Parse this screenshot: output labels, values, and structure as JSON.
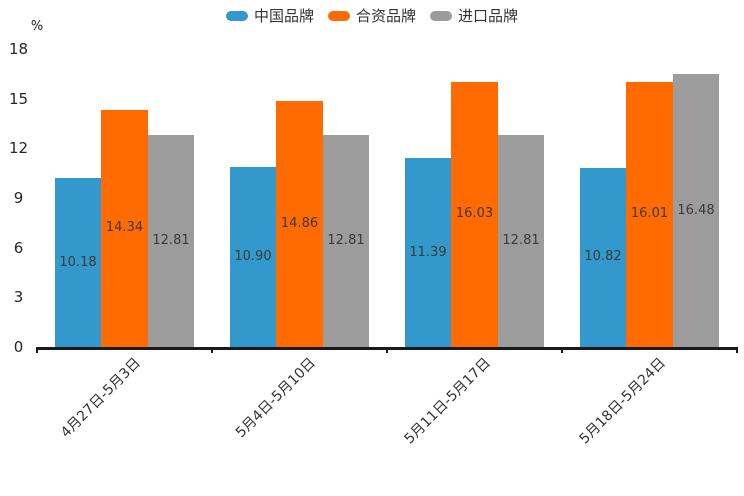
{
  "chart_data": {
    "type": "bar",
    "title": "",
    "ylabel": "%",
    "ylim": [
      0,
      18
    ],
    "yticks": [
      0,
      3,
      6,
      9,
      12,
      15,
      18
    ],
    "grid": false,
    "legend_position": "top-center",
    "value_labels": "inside-center, 2 decimals",
    "categories": [
      "4月27日-5月3日",
      "5月4日-5月10日",
      "5月11日-5月17日",
      "5月18日-5月24日"
    ],
    "series": [
      {
        "name": "中国品牌",
        "color": "#3398CC",
        "values": [
          10.18,
          10.9,
          11.39,
          10.82
        ]
      },
      {
        "name": "合资品牌",
        "color": "#FF6B00",
        "values": [
          14.34,
          14.86,
          16.03,
          16.01
        ]
      },
      {
        "name": "进口品牌",
        "color": "#9C9C9C",
        "values": [
          12.81,
          12.81,
          12.81,
          16.48
        ]
      }
    ],
    "colors": {
      "axis_line": "#1A1A1A",
      "tick_label": "#262626",
      "category_label": "#333333",
      "value_label": "#3A3A3A",
      "background": "#FFFFFF"
    }
  }
}
